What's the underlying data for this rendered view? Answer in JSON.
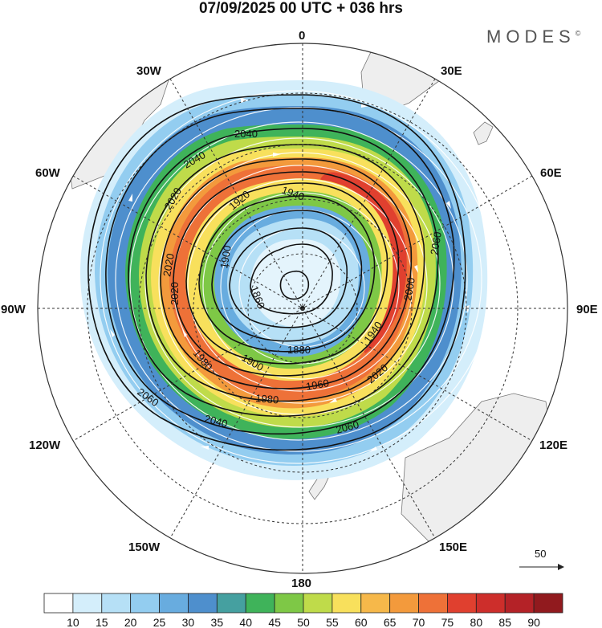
{
  "title": "07/09/2025  00 UTC  + 036 hrs",
  "brand": "MODES",
  "brand_mark": "©",
  "longitude_labels": {
    "lon_0": "0",
    "lon_30e": "30E",
    "lon_60e": "60E",
    "lon_90e": "90E",
    "lon_120e": "120E",
    "lon_150e": "150E",
    "lon_180": "180",
    "lon_150w": "150W",
    "lon_120w": "120W",
    "lon_90w": "90W",
    "lon_60w": "60W",
    "lon_30w": "30W"
  },
  "reference_vector": "50",
  "contour_labels": [
    "2040",
    "2040",
    "2020",
    "1920",
    "1940",
    "2060",
    "2020",
    "1900",
    "2000",
    "1860",
    "1880",
    "1940",
    "2020",
    "1900",
    "1980",
    "1960",
    "1980",
    "2020",
    "2040",
    "2060",
    "2060"
  ],
  "colorbar": {
    "ticks": [
      "10",
      "15",
      "20",
      "25",
      "30",
      "35",
      "40",
      "45",
      "50",
      "55",
      "60",
      "65",
      "70",
      "75",
      "80",
      "85",
      "90"
    ],
    "colors": [
      "#ffffff",
      "#d4eefb",
      "#b6e0f6",
      "#93cdf0",
      "#68acdf",
      "#4e8fcd",
      "#45a0a0",
      "#3fb35a",
      "#7ec846",
      "#bfdb4a",
      "#f8e05c",
      "#f6b84a",
      "#f39a3c",
      "#ee7138",
      "#e0402f",
      "#cd2e2b",
      "#b42227",
      "#911a1e"
    ]
  }
}
